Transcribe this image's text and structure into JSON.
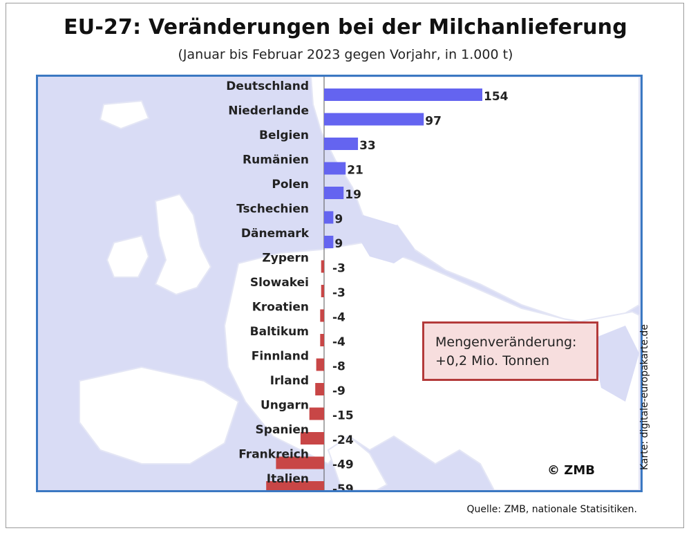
{
  "header": {
    "title": "EU-27: Veränderungen bei der Milchanlieferung",
    "subtitle": "(Januar bis Februar 2023 gegen Vorjahr, in 1.000 t)"
  },
  "chart_data": {
    "type": "bar",
    "orientation": "horizontal",
    "categories": [
      "Deutschland",
      "Niederlande",
      "Belgien",
      "Rumänien",
      "Polen",
      "Tschechien",
      "Dänemark",
      "Zypern",
      "Slowakei",
      "Kroatien",
      "Baltikum",
      "Finnland",
      "Irland",
      "Ungarn",
      "Spanien",
      "Frankreich",
      "Italien"
    ],
    "values": [
      154,
      97,
      33,
      21,
      19,
      9,
      9,
      -3,
      -3,
      -4,
      -4,
      -8,
      -9,
      -15,
      -24,
      -49,
      -59
    ],
    "value_labels": [
      "154",
      "97",
      "33",
      "21",
      "19",
      "9",
      "9",
      "-3",
      "-3",
      "-4",
      "-4",
      "-8",
      "-9",
      "-15",
      "-24",
      "-49",
      "-59"
    ],
    "positive_color": "#6464f0",
    "negative_color": "#c84646",
    "xlim": [
      -60,
      160
    ]
  },
  "infobox": {
    "line1": "Mengenveränderung:",
    "line2": "+0,2 Mio. Tonnen"
  },
  "copyright": "© ZMB",
  "map_credit": "Karte: digitale-europakarte.de",
  "source": "Quelle: ZMB, nationale Statisitiken.",
  "colors": {
    "map_background": "#d9dcf5",
    "map_land": "#ffffff",
    "map_border": "#3b78c2",
    "infobox_border": "#b33a3a",
    "infobox_fill": "#f7dede"
  }
}
